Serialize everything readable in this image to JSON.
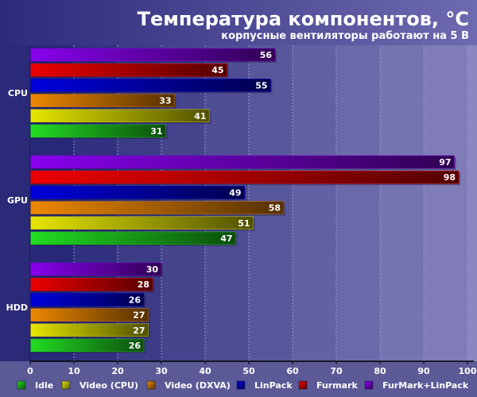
{
  "chart_data": {
    "type": "bar",
    "orientation": "horizontal",
    "title": "Температура компонентов, °C",
    "subtitle": "корпусные вентиляторы работают на 5 В",
    "categories": [
      "CPU",
      "GPU",
      "HDD"
    ],
    "xlim": [
      0,
      100
    ],
    "x_ticks": [
      0,
      10,
      20,
      30,
      40,
      50,
      60,
      70,
      80,
      90,
      100
    ],
    "grid": true,
    "legend_position": "bottom",
    "series": [
      {
        "name": "Idle",
        "color": "#22dd22",
        "values": [
          31,
          47,
          26
        ]
      },
      {
        "name": "Video (CPU)",
        "color": "#e6e600",
        "values": [
          41,
          51,
          27
        ]
      },
      {
        "name": "Video (DXVA)",
        "color": "#ee8800",
        "values": [
          33,
          58,
          27
        ]
      },
      {
        "name": "LinPack",
        "color": "#0000dd",
        "values": [
          55,
          49,
          26
        ]
      },
      {
        "name": "Furmark",
        "color": "#ee0000",
        "values": [
          45,
          98,
          28
        ]
      },
      {
        "name": "FurMark+LinPack",
        "color": "#8800ee",
        "values": [
          56,
          97,
          30
        ]
      }
    ]
  }
}
